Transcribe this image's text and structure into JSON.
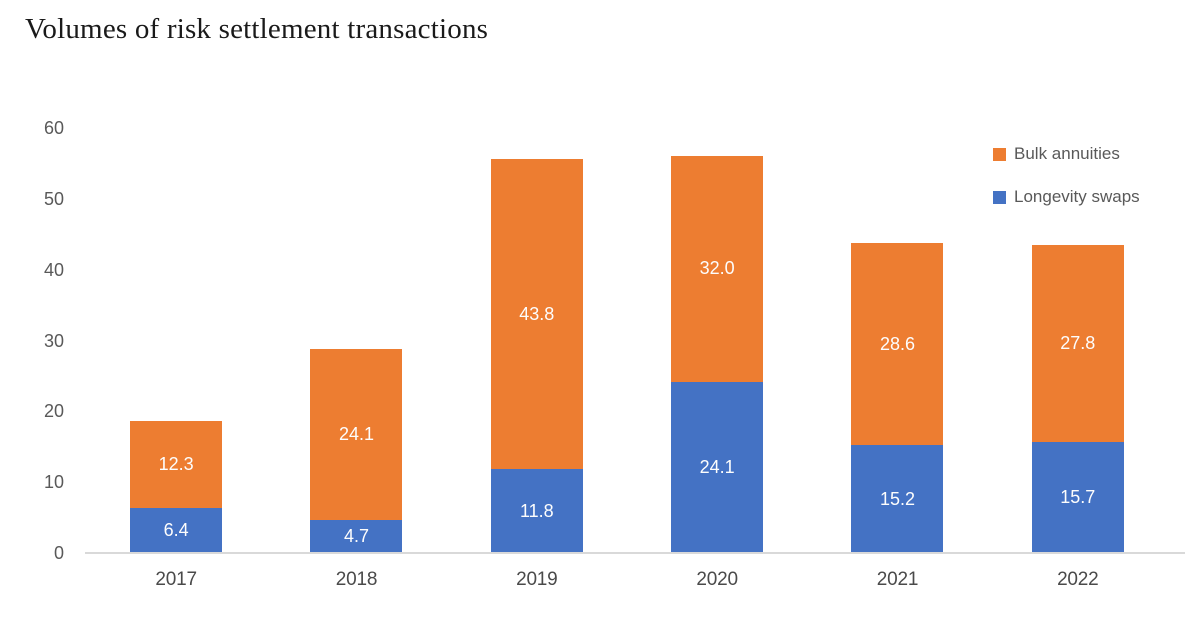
{
  "chart_data": {
    "type": "bar",
    "stacked": true,
    "title": "Volumes of risk settlement transactions",
    "categories": [
      "2017",
      "2018",
      "2019",
      "2020",
      "2021",
      "2022"
    ],
    "series": [
      {
        "name": "Longevity swaps",
        "color": "#4472C4",
        "values": [
          6.4,
          4.7,
          11.8,
          24.1,
          15.2,
          15.7
        ]
      },
      {
        "name": "Bulk annuities",
        "color": "#ED7D31",
        "values": [
          12.3,
          24.1,
          43.8,
          32.0,
          28.6,
          27.8
        ]
      }
    ],
    "legend": [
      {
        "label": "Bulk annuities",
        "color": "#ED7D31"
      },
      {
        "label": "Longevity swaps",
        "color": "#4472C4"
      }
    ],
    "xlabel": "",
    "ylabel": "",
    "ylim": [
      0,
      60
    ],
    "yticks": [
      0,
      10,
      20,
      30,
      40,
      50,
      60
    ],
    "grid": false,
    "legend_position": "top-right",
    "value_label_decimals": 1,
    "colors": {
      "axis_line": "#d9d9d9",
      "tick_text": "#595959",
      "value_label_text": "#fdfdfd",
      "title_text": "#1a1a1a"
    }
  }
}
